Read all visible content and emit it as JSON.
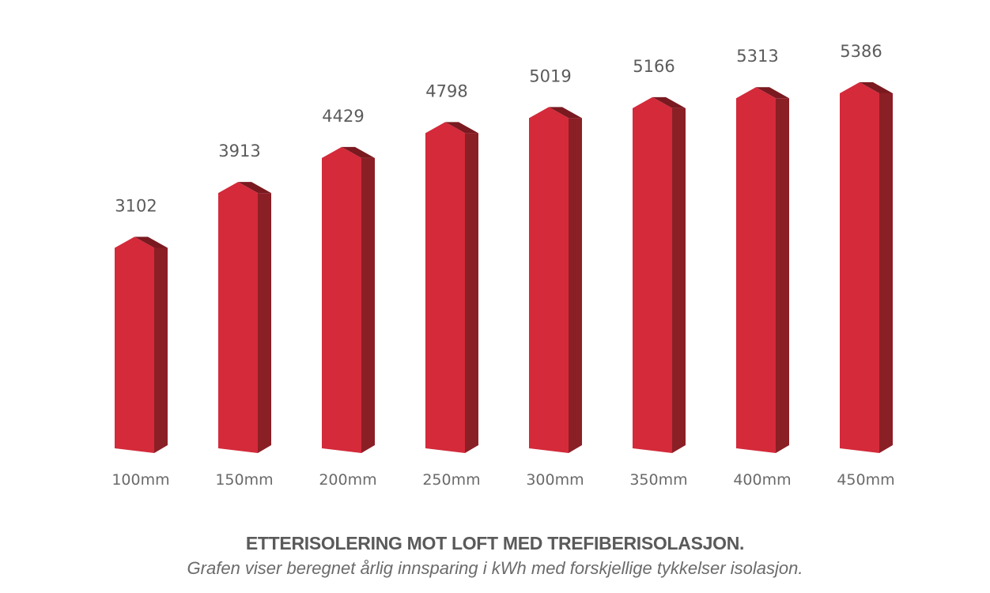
{
  "chart_data": {
    "type": "bar",
    "title": "ETTERISOLERING MOT LOFT MED TREFIBERISOLASJON.",
    "subtitle": "Grafen viser beregnet årlig innsparing i kWh med forskjellige tykkelser isolasjon.",
    "xlabel": "",
    "ylabel": "",
    "categories": [
      "100mm",
      "150mm",
      "200mm",
      "250mm",
      "300mm",
      "350mm",
      "400mm",
      "450mm"
    ],
    "values": [
      3102,
      3913,
      4429,
      4798,
      5019,
      5166,
      5313,
      5386
    ],
    "value_labels": [
      "3102",
      "3913",
      "4429",
      "4798",
      "5019",
      "5166",
      "5313",
      "5386"
    ],
    "ylim": [
      0,
      5386
    ],
    "grid": false,
    "legend": "none",
    "colors": {
      "bar_front": "#d42a3a",
      "bar_side": "#8b1f26",
      "bar_top": "#7a1a20",
      "text": "#5b5b5b"
    }
  }
}
